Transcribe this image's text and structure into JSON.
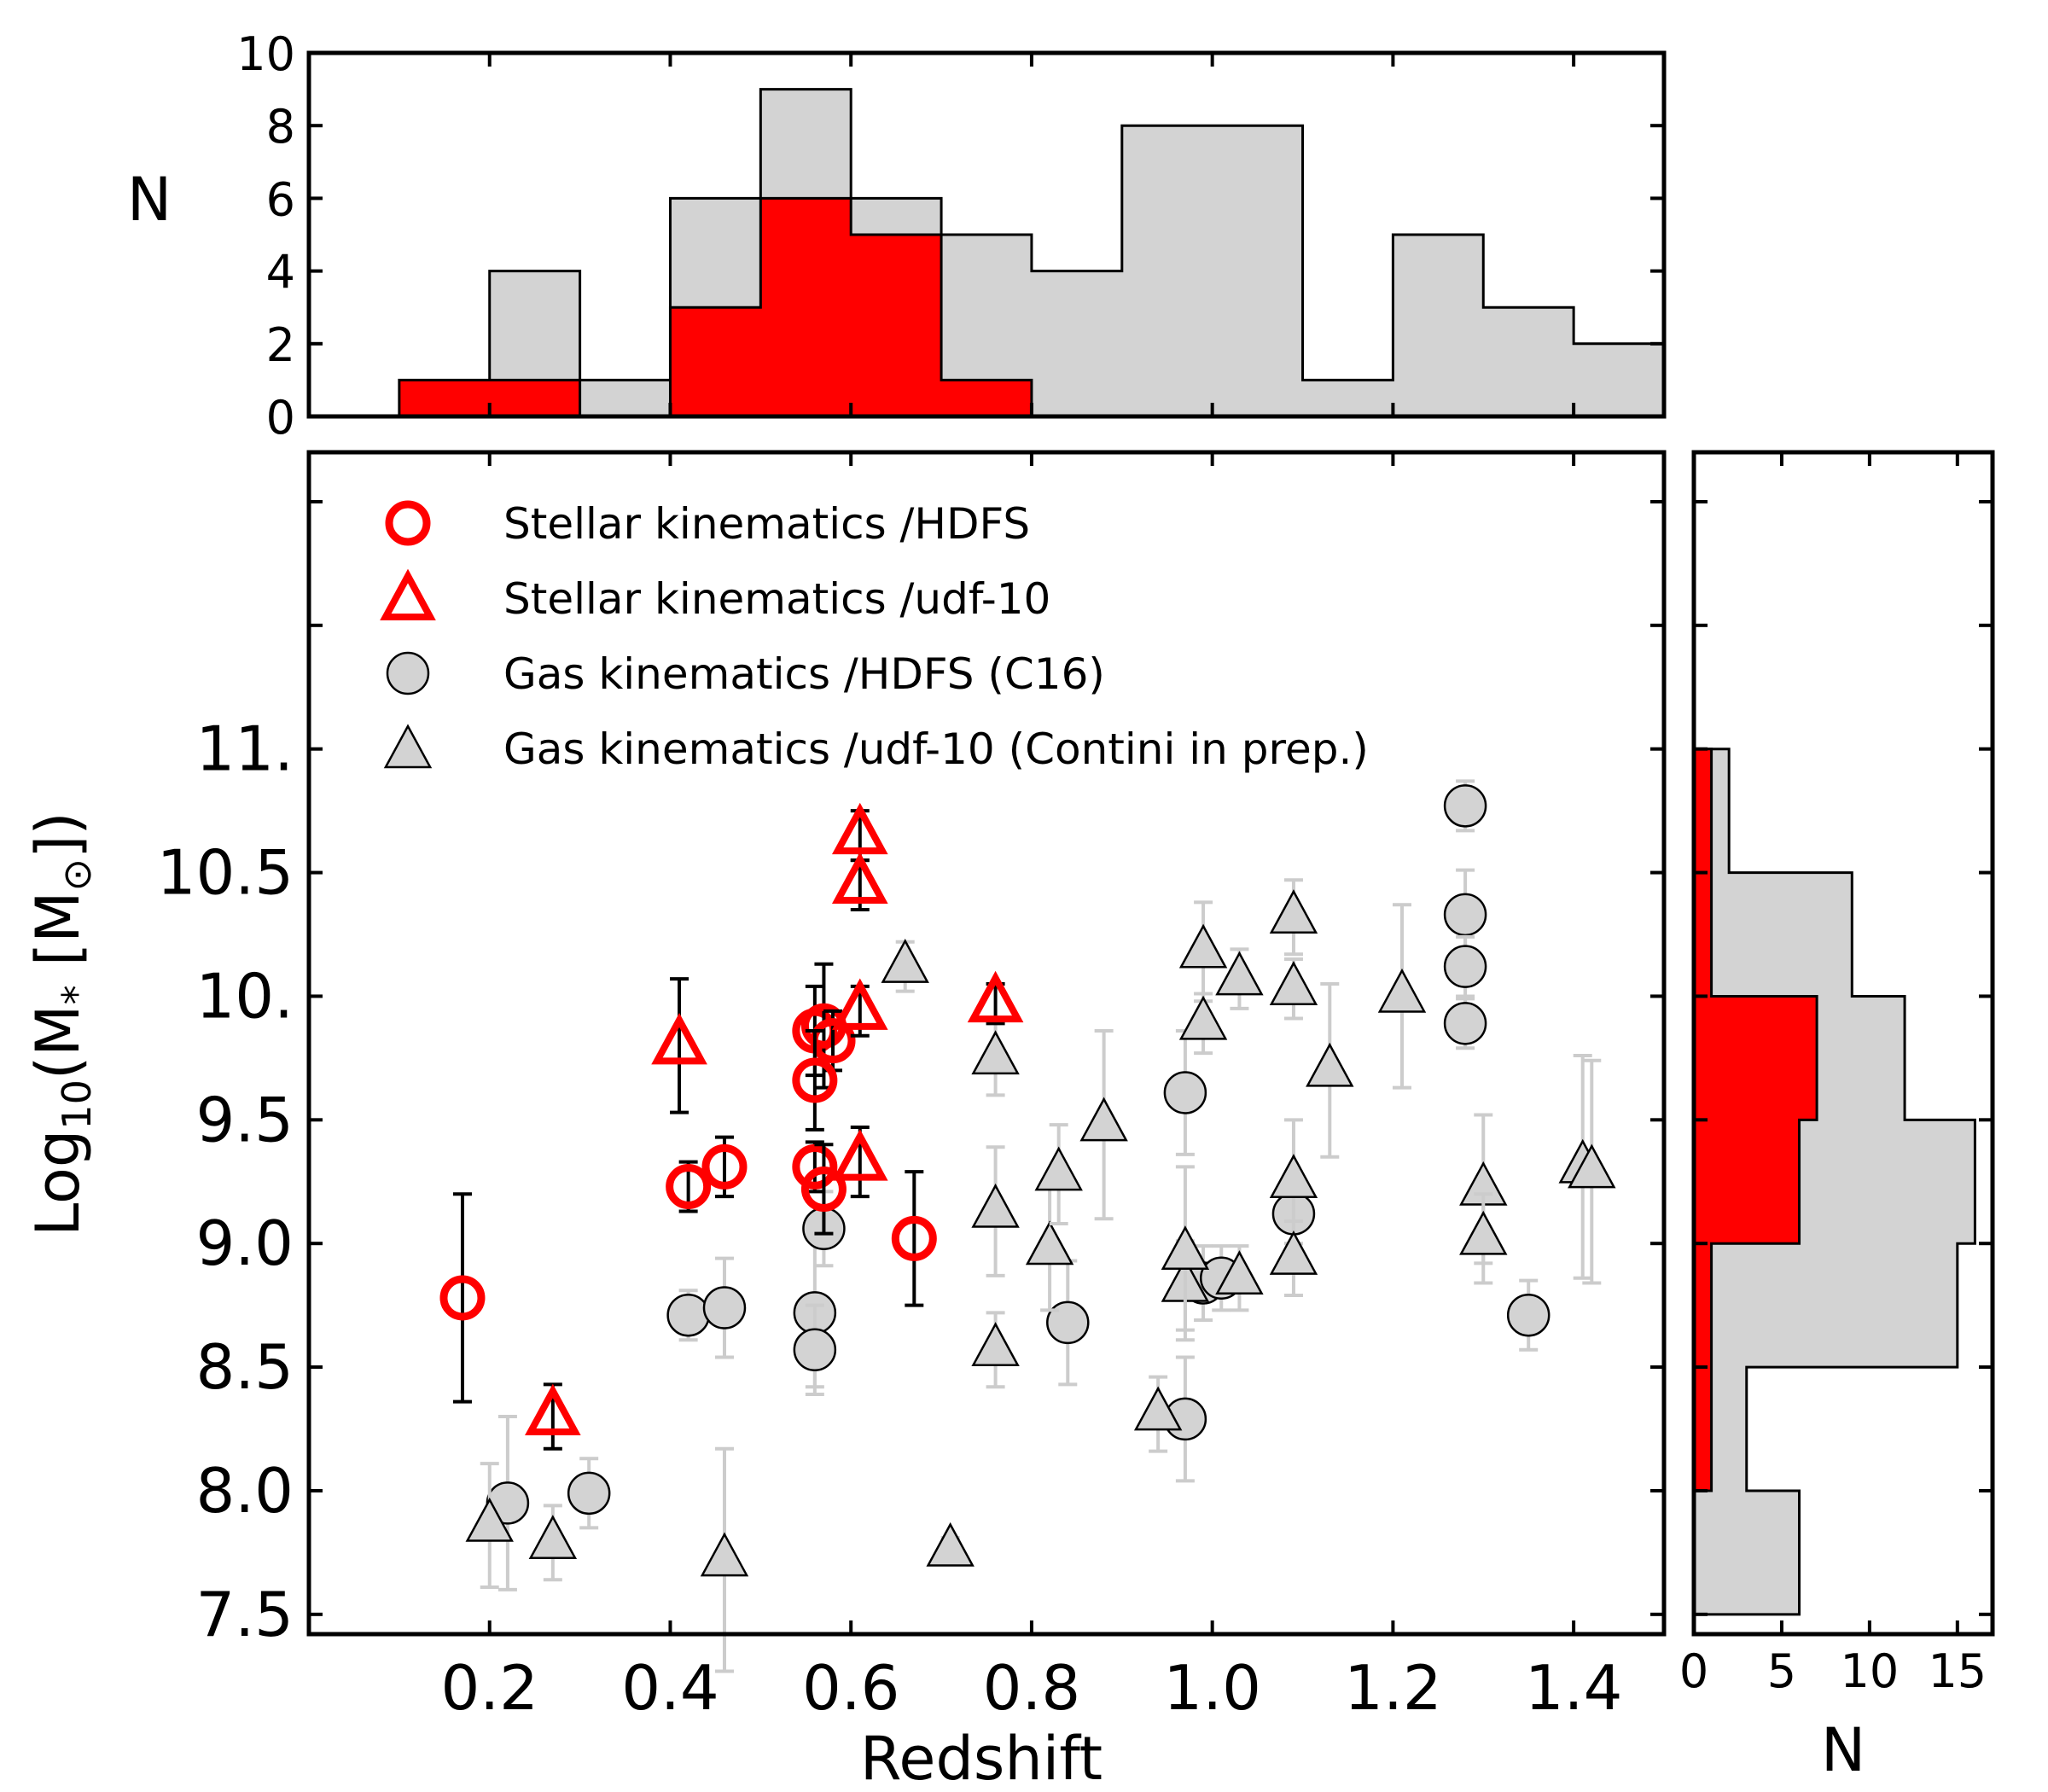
{
  "chart_data": {
    "type": "scatter",
    "xlabel": "Redshift",
    "ylabel_parts": {
      "pre": "Log",
      "sub": "10",
      "mid": "(M",
      "sub2": "*",
      "mid2": " [M",
      "sub3": "⊙",
      "post": "])"
    },
    "xlim": [
      0.0,
      1.5
    ],
    "ylim": [
      7.42,
      12.2
    ],
    "x_ticks": [
      0.2,
      0.4,
      0.6,
      0.8,
      1.0,
      1.2,
      1.4
    ],
    "x_tick_labels": [
      "0.2",
      "0.4",
      "0.6",
      "0.8",
      "1.0",
      "1.2",
      "1.4"
    ],
    "y_ticks": [
      7.5,
      8.0,
      8.5,
      9.0,
      9.5,
      10.0,
      10.5,
      11.0,
      11.5,
      12.0
    ],
    "y_tick_labels": [
      "7.5",
      "8.0",
      "8.5",
      "9.0",
      "9.5",
      "10.",
      "10.5",
      "11.",
      "",
      ""
    ],
    "colors": {
      "stellar": "#ff0000",
      "gas_fill": "#d3d3d3",
      "gas_err": "#cccccc",
      "edge": "#000000"
    },
    "legend": [
      {
        "label": "Stellar kinematics /HDFS",
        "marker": "circle",
        "style": "stellar"
      },
      {
        "label": "Stellar kinematics /udf-10",
        "marker": "triangle",
        "style": "stellar"
      },
      {
        "label": "Gas kinematics /HDFS (C16)",
        "marker": "circle",
        "style": "gas"
      },
      {
        "label": "Gas kinematics /udf-10 (Contini in prep.)",
        "marker": "triangle",
        "style": "gas"
      }
    ],
    "series": [
      {
        "name": "Stellar kinematics /HDFS",
        "marker": "circle",
        "style": "stellar",
        "points": [
          [
            0.17,
            8.78,
            0.42
          ],
          [
            0.42,
            9.23,
            0.1
          ],
          [
            0.46,
            9.31,
            0.12
          ],
          [
            0.56,
            9.86,
            0.18
          ],
          [
            0.57,
            9.88,
            0.25
          ],
          [
            0.58,
            9.82,
            0.12
          ],
          [
            0.56,
            9.66,
            0.2
          ],
          [
            0.56,
            9.31,
            0.1
          ],
          [
            0.57,
            9.22,
            0.18
          ],
          [
            0.67,
            9.02,
            0.27
          ]
        ]
      },
      {
        "name": "Stellar kinematics /udf-10",
        "marker": "triangle",
        "style": "stellar",
        "points": [
          [
            0.41,
            9.8,
            0.27
          ],
          [
            0.27,
            8.3,
            0.13
          ],
          [
            0.61,
            10.65,
            0.1
          ],
          [
            0.61,
            10.45,
            0.1
          ],
          [
            0.61,
            9.94,
            0.1
          ],
          [
            0.61,
            9.33,
            0.14
          ],
          [
            0.76,
            9.97,
            0.08
          ]
        ]
      },
      {
        "name": "Gas kinematics /HDFS (C16)",
        "marker": "circle",
        "style": "gas",
        "points": [
          [
            0.22,
            7.95,
            0.35
          ],
          [
            0.31,
            7.99,
            0.14
          ],
          [
            0.42,
            8.71,
            0.1
          ],
          [
            0.46,
            8.74,
            0.2
          ],
          [
            0.56,
            8.72,
            0.3
          ],
          [
            0.56,
            8.57,
            0.18
          ],
          [
            0.57,
            9.06,
            0.15
          ],
          [
            0.84,
            8.68,
            0.25
          ],
          [
            0.97,
            9.61,
            0.25
          ],
          [
            0.97,
            8.29,
            0.25
          ],
          [
            0.99,
            8.84,
            0.15
          ],
          [
            1.01,
            8.86,
            0.13
          ],
          [
            1.09,
            9.12,
            0.17
          ],
          [
            1.28,
            10.77,
            0.1
          ],
          [
            1.28,
            10.33,
            0.18
          ],
          [
            1.28,
            10.12,
            0.12
          ],
          [
            1.28,
            9.89,
            0.1
          ],
          [
            1.35,
            8.71,
            0.14
          ]
        ]
      },
      {
        "name": "Gas kinematics /udf-10 (Contini in prep.)",
        "marker": "triangle",
        "style": "gas",
        "points": [
          [
            0.2,
            7.86,
            0.25
          ],
          [
            0.27,
            7.79,
            0.15
          ],
          [
            0.46,
            7.72,
            0.45
          ],
          [
            0.66,
            10.12,
            0.1
          ],
          [
            0.71,
            7.76,
            0.05
          ],
          [
            0.76,
            9.75,
            0.15
          ],
          [
            0.76,
            9.13,
            0.26
          ],
          [
            0.76,
            8.57,
            0.15
          ],
          [
            0.82,
            8.98,
            0.25
          ],
          [
            0.83,
            9.28,
            0.2
          ],
          [
            0.88,
            9.48,
            0.38
          ],
          [
            0.94,
            8.31,
            0.15
          ],
          [
            0.97,
            8.83,
            0.18
          ],
          [
            0.97,
            8.96,
            0.35
          ],
          [
            0.99,
            10.18,
            0.2
          ],
          [
            0.99,
            9.89,
            0.12
          ],
          [
            1.03,
            10.07,
            0.12
          ],
          [
            1.03,
            8.86,
            0.13
          ],
          [
            1.09,
            10.32,
            0.15
          ],
          [
            1.09,
            10.03,
            0.12
          ],
          [
            1.09,
            9.25,
            0.25
          ],
          [
            1.09,
            8.94,
            0.15
          ],
          [
            1.13,
            9.7,
            0.35
          ],
          [
            1.21,
            10.0,
            0.37
          ],
          [
            1.3,
            9.22,
            0.3
          ],
          [
            1.3,
            9.02,
            0.18
          ],
          [
            1.41,
            9.31,
            0.45
          ],
          [
            1.42,
            9.29,
            0.45
          ]
        ]
      }
    ],
    "top_histogram": {
      "ylabel": "N",
      "ylim": [
        0,
        10
      ],
      "y_ticks": [
        0,
        2,
        4,
        6,
        8,
        10
      ],
      "y_tick_labels": [
        "0",
        "2",
        "4",
        "6",
        "8",
        "10"
      ],
      "bin_edges": [
        0.0,
        0.1,
        0.2,
        0.3,
        0.4,
        0.5,
        0.6,
        0.7,
        0.8,
        0.9,
        1.0,
        1.1,
        1.2,
        1.3,
        1.4,
        1.5
      ],
      "gas_counts": [
        0,
        0,
        4,
        1,
        6,
        9,
        6,
        5,
        4,
        8,
        8,
        1,
        5,
        3,
        2
      ],
      "stellar_counts": [
        0,
        1,
        1,
        0,
        3,
        6,
        5,
        1,
        0,
        0,
        0,
        0,
        0,
        0,
        0
      ]
    },
    "right_histogram": {
      "xlabel": "N",
      "xlim": [
        0,
        17
      ],
      "x_ticks": [
        0,
        5,
        10,
        15
      ],
      "x_tick_labels": [
        "0",
        "5",
        "10",
        "15"
      ],
      "bin_edges": [
        7.5,
        8.0,
        8.5,
        9.0,
        9.5,
        10.0,
        10.5,
        11.0
      ],
      "gas_counts": [
        6,
        3,
        15,
        16,
        12,
        9,
        2
      ],
      "stellar_counts": [
        0,
        1,
        1,
        6,
        7,
        1,
        1
      ]
    }
  }
}
